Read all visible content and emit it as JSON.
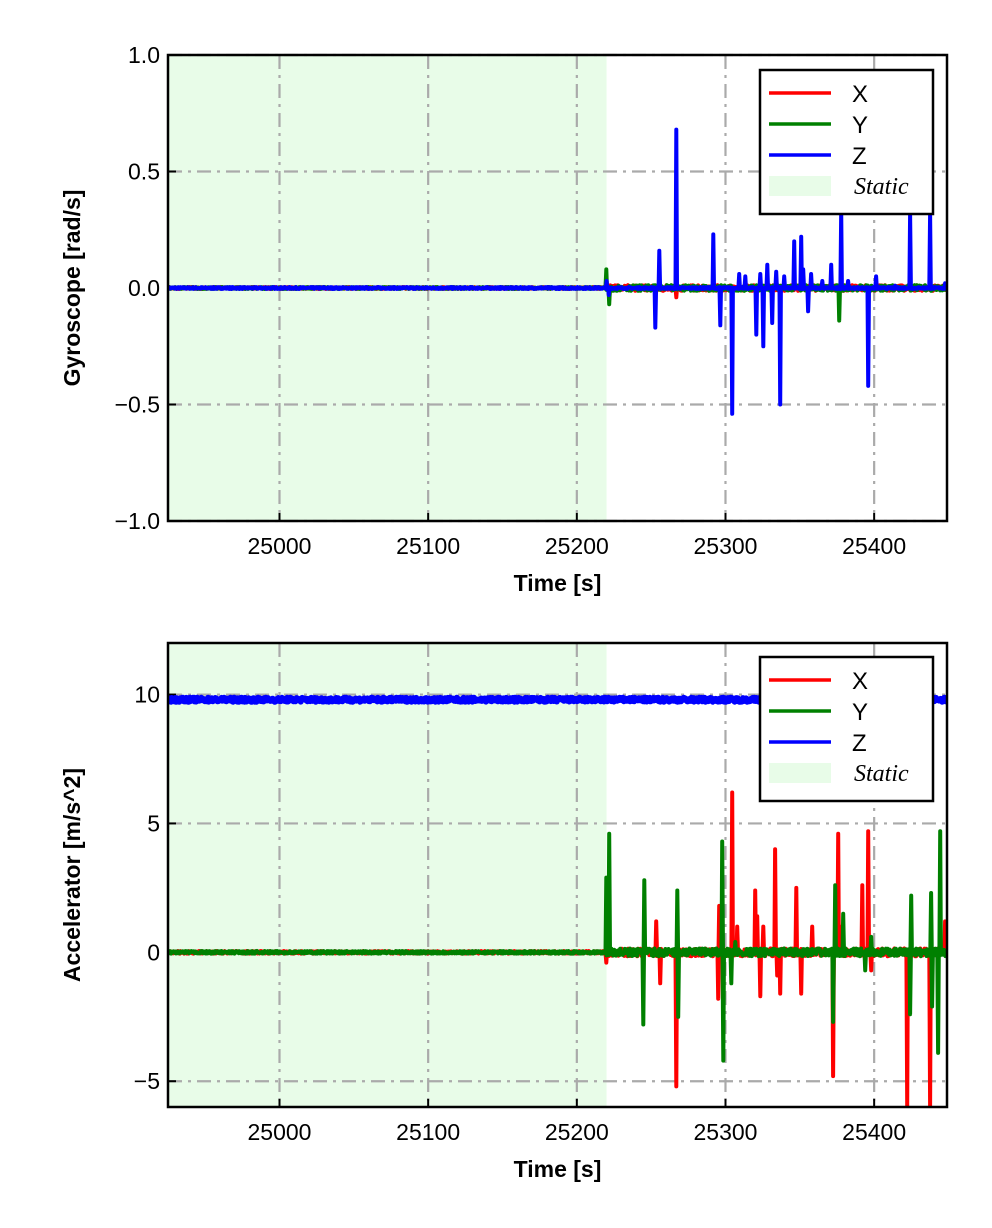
{
  "colors": {
    "X": "#ff0000",
    "Y": "#008000",
    "Z": "#0000ff",
    "static": "#e8fce8",
    "grid": "#aaaaaa"
  },
  "chart_data": [
    {
      "type": "line",
      "xlabel": "Time [s]",
      "ylabel": "Gyroscope [rad/s]",
      "xlim": [
        24925,
        25449
      ],
      "ylim": [
        -1,
        1
      ],
      "xticks": [
        25000,
        25100,
        25200,
        25300,
        25400
      ],
      "xtick_labels": [
        "25000",
        "25100",
        "25200",
        "25300",
        "25400"
      ],
      "yticks": [
        1,
        0.5,
        0,
        -0.5,
        -1
      ],
      "ytick_labels": [
        "1.0",
        "0.5",
        "0.0",
        "−0.5",
        "−1.0"
      ],
      "grid": true,
      "legend": "top-right",
      "legend_entries": [
        "X",
        "Y",
        "Z",
        "Static"
      ],
      "static_span": [
        24925,
        25220
      ],
      "baseline": {
        "X": 0,
        "Y": 0,
        "Z": 0
      },
      "noise": {
        "X": 0.004,
        "Y": 0.004,
        "Z": 0.004
      },
      "series": [
        {
          "name": "X",
          "spikes": [
            [
              25219.8,
              0.05
            ],
            [
              25221.8,
              -0.05
            ],
            [
              25266.9,
              -0.04
            ]
          ]
        },
        {
          "name": "Y",
          "spikes": [
            [
              25219.8,
              0.08
            ],
            [
              25221.8,
              -0.07
            ],
            [
              25376.5,
              -0.14
            ]
          ]
        },
        {
          "name": "Z",
          "spikes": [
            [
              25220,
              0.03
            ],
            [
              25221.5,
              -0.03
            ],
            [
              25252.8,
              -0.17
            ],
            [
              25255.5,
              0.16
            ],
            [
              25266.9,
              0.68
            ],
            [
              25291.8,
              0.23
            ],
            [
              25296.5,
              -0.16
            ],
            [
              25304.5,
              -0.54
            ],
            [
              25309.2,
              0.06
            ],
            [
              25313.3,
              0.05
            ],
            [
              25320.7,
              -0.2
            ],
            [
              25323.4,
              0.06
            ],
            [
              25325.4,
              -0.25
            ],
            [
              25328.1,
              0.1
            ],
            [
              25331.4,
              -0.15
            ],
            [
              25334.1,
              0.07
            ],
            [
              25336.8,
              -0.5
            ],
            [
              25339.5,
              0.05
            ],
            [
              25346.2,
              0.2
            ],
            [
              25350.9,
              0.22
            ],
            [
              25352.3,
              0.08
            ],
            [
              25355.6,
              -0.1
            ],
            [
              25357.6,
              0.06
            ],
            [
              25365.1,
              0.03
            ],
            [
              25371.1,
              0.1
            ],
            [
              25377.8,
              0.33
            ],
            [
              25382.5,
              0.03
            ],
            [
              25396,
              -0.42
            ],
            [
              25401.3,
              0.05
            ],
            [
              25414.1,
              0.01
            ],
            [
              25424.2,
              0.32
            ],
            [
              25437.6,
              0.32
            ],
            [
              25447.7,
              0.02
            ]
          ]
        }
      ]
    },
    {
      "type": "line",
      "xlabel": "Time [s]",
      "ylabel": "Accelerator [m/s^2]",
      "xlim": [
        24925,
        25449
      ],
      "ylim": [
        -6,
        12
      ],
      "xticks": [
        25000,
        25100,
        25200,
        25300,
        25400
      ],
      "xtick_labels": [
        "25000",
        "25100",
        "25200",
        "25300",
        "25400"
      ],
      "yticks": [
        10,
        5,
        0,
        -5
      ],
      "ytick_labels": [
        "10",
        "5",
        "0",
        "−5"
      ],
      "grid": true,
      "legend": "top-right",
      "legend_entries": [
        "X",
        "Y",
        "Z",
        "Static"
      ],
      "static_span": [
        24925,
        25220
      ],
      "baseline": {
        "X": 0,
        "Y": 0,
        "Z": 9.8
      },
      "noise": {
        "X": 0.05,
        "Y": 0.05,
        "Z": 0.08
      },
      "series": [
        {
          "name": "X",
          "spikes": [
            [
              25219.8,
              -0.4
            ],
            [
              25253.4,
              1.2
            ],
            [
              25256.1,
              -1.2
            ],
            [
              25266.9,
              -5.2
            ],
            [
              25295.1,
              -1.8
            ],
            [
              25295.8,
              1.8
            ],
            [
              25304.5,
              6.2
            ],
            [
              25307.9,
              1.0
            ],
            [
              25320,
              2.4
            ],
            [
              25321.3,
              1.4
            ],
            [
              25323.4,
              -1.7
            ],
            [
              25325.4,
              1.0
            ],
            [
              25333.4,
              4.0
            ],
            [
              25334.8,
              -0.9
            ],
            [
              25336.8,
              -1.6
            ],
            [
              25347.6,
              2.5
            ],
            [
              25350.9,
              -1.6
            ],
            [
              25358.3,
              1.0
            ],
            [
              25372.4,
              -4.8
            ],
            [
              25375.8,
              4.6
            ],
            [
              25377.1,
              1.0
            ],
            [
              25392,
              2.6
            ],
            [
              25396,
              4.7
            ],
            [
              25398,
              -0.7
            ],
            [
              25422.2,
              -6
            ],
            [
              25437.6,
              -6
            ],
            [
              25447.7,
              1.2
            ]
          ]
        },
        {
          "name": "Y",
          "spikes": [
            [
              25219.8,
              2.9
            ],
            [
              25221.8,
              4.6
            ],
            [
              25244.7,
              -2.8
            ],
            [
              25245.4,
              2.8
            ],
            [
              25267.6,
              2.4
            ],
            [
              25268.2,
              -2.5
            ],
            [
              25297.8,
              4.3
            ],
            [
              25298.5,
              -4.2
            ],
            [
              25303.9,
              -1.2
            ],
            [
              25306.6,
              0.4
            ],
            [
              25372.4,
              -2.7
            ],
            [
              25373.8,
              2.6
            ],
            [
              25379.2,
              1.5
            ],
            [
              25394,
              -0.7
            ],
            [
              25398,
              0.6
            ],
            [
              25424.2,
              -2.4
            ],
            [
              25424.9,
              2.2
            ],
            [
              25438.3,
              2.3
            ],
            [
              25439,
              -2.1
            ],
            [
              25443,
              -3.9
            ],
            [
              25444.4,
              4.7
            ]
          ]
        },
        {
          "name": "Z",
          "spikes": []
        }
      ]
    }
  ]
}
